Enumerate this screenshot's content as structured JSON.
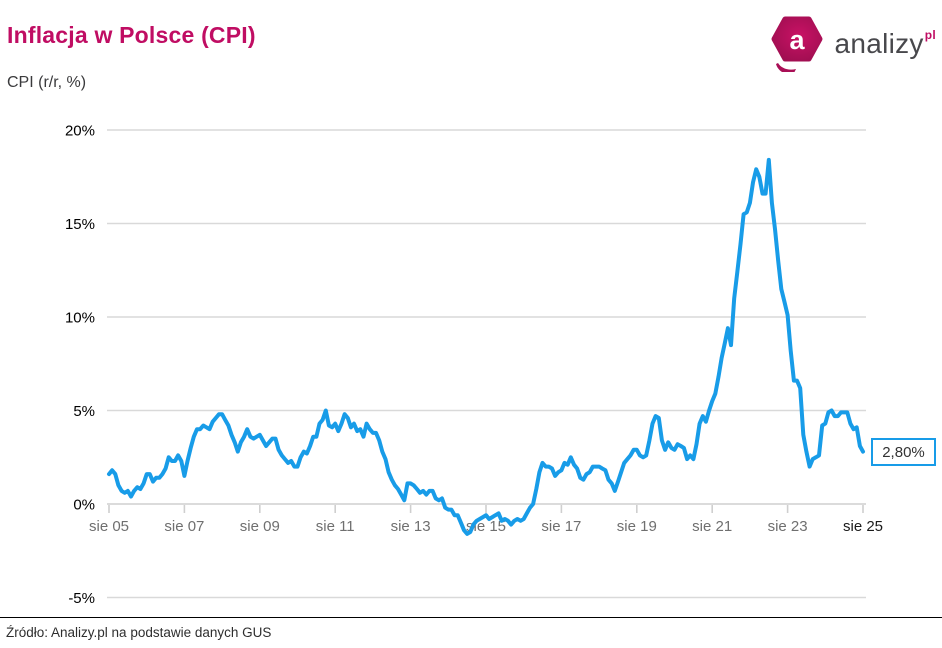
{
  "header": {
    "title": "Inflacja w Polsce (CPI)",
    "subtitle": "CPI (r/r, %)"
  },
  "logo": {
    "badge_letter": "a",
    "wordmark": "analizy",
    "tld": "pl"
  },
  "footer": {
    "source_text": "Źródło: Analizy.pl na podstawie danych GUS"
  },
  "colors": {
    "accent_magenta": "#C00D63",
    "badge_inner": "#C91265",
    "badge_outer": "#9E0E50",
    "line_blue": "#189CE8",
    "gridline": "#D9D9D9",
    "axis_line": "#CFCFCF",
    "x_label_gray": "#6F6F6F",
    "x_label_last": "#1A1A1A",
    "y_label_black": "#000000"
  },
  "chart_data": {
    "type": "line",
    "title": "Inflacja w Polsce (CPI)",
    "ylabel": "CPI (r/r, %)",
    "unit": "%",
    "frequency": "monthly",
    "x_start": "sie 05",
    "x_end": "sie 25",
    "x_tick_interval_months": 24,
    "x_tick_labels": [
      "sie 05",
      "sie 07",
      "sie 09",
      "sie 11",
      "sie 13",
      "sie 15",
      "sie 17",
      "sie 19",
      "sie 21",
      "sie 23",
      "sie 25"
    ],
    "y_ticks": [
      20,
      15,
      10,
      5,
      0,
      -5
    ],
    "y_tick_labels": [
      "20%",
      "15%",
      "10%",
      "5%",
      "0%",
      "-5%"
    ],
    "ylim": [
      -5,
      20
    ],
    "grid": true,
    "legend": false,
    "last_value": 2.8,
    "last_value_label": "2,80%",
    "values": [
      1.6,
      1.8,
      1.6,
      1.0,
      0.7,
      0.6,
      0.7,
      0.4,
      0.7,
      0.9,
      0.8,
      1.1,
      1.6,
      1.6,
      1.2,
      1.4,
      1.4,
      1.6,
      1.9,
      2.5,
      2.3,
      2.3,
      2.6,
      2.3,
      1.5,
      2.3,
      3.0,
      3.6,
      4.0,
      4.0,
      4.2,
      4.1,
      4.0,
      4.4,
      4.6,
      4.8,
      4.8,
      4.5,
      4.2,
      3.7,
      3.3,
      2.8,
      3.3,
      3.6,
      4.0,
      3.6,
      3.5,
      3.6,
      3.7,
      3.4,
      3.1,
      3.3,
      3.5,
      3.5,
      2.9,
      2.6,
      2.4,
      2.2,
      2.3,
      2.0,
      2.0,
      2.5,
      2.8,
      2.7,
      3.1,
      3.6,
      3.6,
      4.3,
      4.5,
      5.0,
      4.2,
      4.1,
      4.3,
      3.9,
      4.3,
      4.8,
      4.6,
      4.1,
      4.3,
      3.9,
      4.0,
      3.6,
      4.3,
      4.0,
      3.8,
      3.8,
      3.4,
      2.8,
      2.4,
      1.7,
      1.3,
      1.0,
      0.8,
      0.5,
      0.2,
      1.1,
      1.1,
      1.0,
      0.8,
      0.6,
      0.7,
      0.5,
      0.7,
      0.7,
      0.3,
      0.2,
      0.3,
      -0.2,
      -0.3,
      -0.3,
      -0.6,
      -0.6,
      -1.0,
      -1.4,
      -1.6,
      -1.5,
      -1.1,
      -0.9,
      -0.8,
      -0.7,
      -0.6,
      -0.8,
      -0.7,
      -0.6,
      -0.5,
      -0.9,
      -0.8,
      -0.9,
      -1.1,
      -0.9,
      -0.8,
      -0.9,
      -0.8,
      -0.5,
      -0.2,
      0.0,
      0.8,
      1.7,
      2.2,
      2.0,
      2.0,
      1.9,
      1.5,
      1.7,
      1.8,
      2.2,
      2.1,
      2.5,
      2.1,
      1.9,
      1.4,
      1.3,
      1.6,
      1.7,
      2.0,
      2.0,
      2.0,
      1.9,
      1.8,
      1.3,
      1.1,
      0.7,
      1.2,
      1.7,
      2.2,
      2.4,
      2.6,
      2.9,
      2.9,
      2.6,
      2.5,
      2.6,
      3.4,
      4.3,
      4.7,
      4.6,
      3.4,
      2.9,
      3.3,
      3.0,
      2.9,
      3.2,
      3.1,
      3.0,
      2.4,
      2.6,
      2.4,
      3.2,
      4.3,
      4.7,
      4.4,
      5.0,
      5.5,
      5.9,
      6.8,
      7.8,
      8.6,
      9.4,
      8.5,
      11.0,
      12.4,
      13.9,
      15.5,
      15.6,
      16.1,
      17.2,
      17.9,
      17.5,
      16.6,
      16.6,
      18.4,
      16.1,
      14.7,
      13.0,
      11.5,
      10.8,
      10.1,
      8.2,
      6.6,
      6.6,
      6.2,
      3.7,
      2.8,
      2.0,
      2.4,
      2.5,
      2.6,
      4.2,
      4.3,
      4.9,
      5.0,
      4.7,
      4.7,
      4.9,
      4.9,
      4.9,
      4.3,
      4.0,
      4.1,
      3.1,
      2.8
    ]
  }
}
